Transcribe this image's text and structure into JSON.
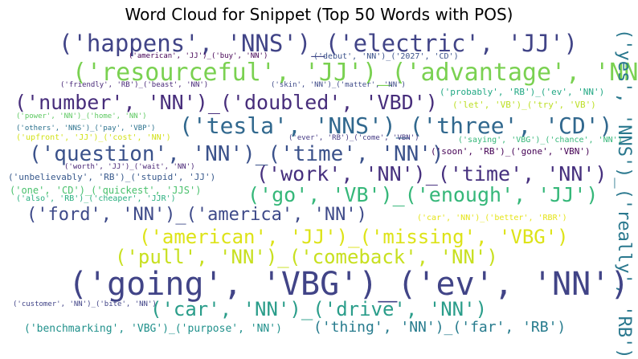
{
  "title": "Word Cloud for Snippet (Top 50 Words with POS)",
  "words": [
    {
      "text": "('happens', 'NNS')_('electric', 'JJ')",
      "color": "#414487"
    },
    {
      "text": "('american', 'JJ')_('buy', 'NN')",
      "color": "#440154"
    },
    {
      "text": "('debut', 'NN')_('2027', 'CD')",
      "color": "#3b528b"
    },
    {
      "text": "('resourceful', 'JJ')_('advantage', 'NN')",
      "color": "#7ad151"
    },
    {
      "text": "('yes', 'NNS')_('really', 'RB')",
      "color": "#2a788e"
    },
    {
      "text": "('friendly', 'RB')_('beast', 'NN')",
      "color": "#482878"
    },
    {
      "text": "('skin', 'NN')_('matter', 'NN')",
      "color": "#3e4a89"
    },
    {
      "text": "('probably', 'RB')_('ev', 'NN')",
      "color": "#22a884"
    },
    {
      "text": "('number', 'NN')_('doubled', 'VBD')",
      "color": "#472d7b"
    },
    {
      "text": "('let', 'VB')_('try', 'VB')",
      "color": "#bddf26"
    },
    {
      "text": "('power', 'NN')_('home', 'NN')",
      "color": "#5ec962"
    },
    {
      "text": "('tesla', 'NNS')_('three', 'CD')",
      "color": "#31688e"
    },
    {
      "text": "('others', 'NNS')_('pay', 'VBP')",
      "color": "#2c728e"
    },
    {
      "text": "('upfront', 'JJ')_('cost', 'NN')",
      "color": "#d2e21b"
    },
    {
      "text": "('ever', 'RB')_('come', 'VBN')",
      "color": "#443983"
    },
    {
      "text": "('saying', 'VBG')_('chance', 'NN')",
      "color": "#35b779"
    },
    {
      "text": "('question', 'NN')_('time', 'NN')",
      "color": "#3b528b"
    },
    {
      "text": "('soon', 'RB')_('gone', 'VBN')",
      "color": "#440154"
    },
    {
      "text": "('worth', 'JJ')_('wait', 'NN')",
      "color": "#482475"
    },
    {
      "text": "('unbelievably', 'RB')_('stupid', 'JJ')",
      "color": "#38598c"
    },
    {
      "text": "('work', 'NN')_('time', 'NN')",
      "color": "#46307e"
    },
    {
      "text": "('one', 'CD')_('quickest', 'JJS')",
      "color": "#4ac16d"
    },
    {
      "text": "('also', 'RB')_('cheaper', 'JJR')",
      "color": "#29af7f"
    },
    {
      "text": "('go', 'VB')_('enough', 'JJ')",
      "color": "#35b779"
    },
    {
      "text": "('ford', 'NN')_('america', 'NN')",
      "color": "#3e4a89"
    },
    {
      "text": "('car', 'NN')_('better', 'RBR')",
      "color": "#e5e419"
    },
    {
      "text": "('american', 'JJ')_('missing', 'VBG')",
      "color": "#dde318"
    },
    {
      "text": "('pull', 'NN')_('comeback', 'NN')",
      "color": "#c8e020"
    },
    {
      "text": "('going', 'VBG')_('ev', 'NN')",
      "color": "#414487"
    },
    {
      "text": "('customer', 'NN')_('bite', 'NN')",
      "color": "#404387"
    },
    {
      "text": "('car', 'NN')_('drive', 'NN')",
      "color": "#2a9d8a"
    },
    {
      "text": "('benchmarking', 'VBG')_('purpose', 'NN')",
      "color": "#21918c"
    },
    {
      "text": "('thing', 'NN')_('far', 'RB')",
      "color": "#287c8e"
    }
  ]
}
